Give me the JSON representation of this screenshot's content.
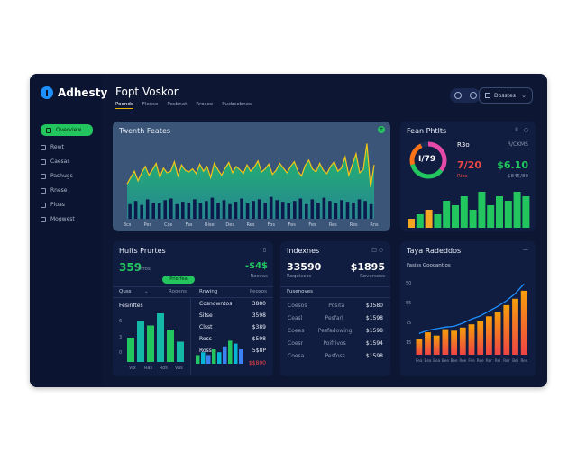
{
  "app": {
    "name": "Adhesty"
  },
  "sidebar": {
    "items": [
      {
        "label": "Overview",
        "active": true
      },
      {
        "label": "Rewt"
      },
      {
        "label": "Caesas"
      },
      {
        "label": "Pashugs"
      },
      {
        "label": "Rnese"
      },
      {
        "label": "Pluas"
      },
      {
        "label": "Mogwest"
      }
    ]
  },
  "header": {
    "title": "Fopt Voskor",
    "tabs": [
      "Poonds",
      "Fleose",
      "Pesbnat",
      "Rrosee",
      "Pucbsebnos"
    ],
    "select_label": "Dbsstes"
  },
  "main_chart": {
    "title": "Twenth Feates",
    "badge": "+",
    "x_labels": [
      "Bcs",
      "Pes",
      "Cos",
      "Fas",
      "Rise",
      "Des",
      "Res",
      "Fos",
      "Fes",
      "Fes",
      "Res",
      "Res",
      "Rns"
    ]
  },
  "chart_data": [
    {
      "type": "area",
      "title": "Twenth Feates",
      "series": [
        {
          "values": [
            44,
            52,
            60,
            48,
            58,
            66,
            55,
            62,
            70,
            52,
            64,
            58,
            60,
            72,
            54,
            68,
            61,
            59,
            63,
            57,
            69,
            60,
            66,
            52,
            70,
            62,
            55,
            64,
            71,
            58,
            66,
            62,
            57,
            68,
            60,
            65,
            73,
            59,
            63,
            69,
            56,
            61,
            70,
            64,
            58,
            66,
            72,
            60,
            54,
            67,
            74,
            63,
            59,
            70,
            61,
            57,
            66,
            72,
            60,
            64,
            78,
            55,
            68,
            82,
            58,
            62,
            95,
            40,
            68
          ]
        }
      ],
      "bars": [
        18,
        22,
        17,
        24,
        20,
        19,
        23,
        25,
        18,
        21,
        20,
        24,
        19,
        22,
        26,
        20,
        23,
        18,
        21,
        25,
        19,
        22,
        24,
        20,
        27,
        23,
        21,
        19,
        22,
        25,
        18,
        24,
        20,
        26,
        22,
        19,
        23,
        21,
        20,
        24,
        22,
        18
      ],
      "ylim": [
        0,
        100
      ],
      "x_tick_labels": [
        "Bcs",
        "Pes",
        "Cos",
        "Fas",
        "Rise",
        "Des",
        "Res",
        "Fos",
        "Fes",
        "Fes",
        "Res",
        "Res",
        "Rns"
      ]
    },
    {
      "type": "bar",
      "title": "Hults Prurtes",
      "values": [
        6,
        10,
        9,
        12,
        8,
        5
      ],
      "bottom_labels": [
        "Vix",
        "Ras",
        "Ros",
        "Vas"
      ]
    },
    {
      "type": "bar",
      "title": "Hults Prurtes",
      "values": [
        3,
        4,
        3,
        5,
        4,
        6,
        8,
        7,
        5
      ],
      "colors": [
        "#22c55e",
        "#06b6d4",
        "#3b82f6",
        "#22c55e",
        "#06b6d4",
        "#3b82f6",
        "#22c55e",
        "#06b6d4",
        "#3b82f6"
      ]
    },
    {
      "type": "bar",
      "title": "Taya Radeddos",
      "subtitle": "Fasiss Goocantios",
      "values": [
        20,
        28,
        24,
        32,
        30,
        34,
        38,
        42,
        48,
        54,
        62,
        70,
        80
      ],
      "line": [
        22,
        26,
        28,
        30,
        31,
        35,
        40,
        44,
        50,
        56,
        63,
        72,
        84
      ],
      "y_ticks": [
        "50",
        "55",
        "75",
        "15"
      ],
      "x_labels": [
        "Fea",
        "Bea",
        "Bea",
        "Bee",
        "Bee",
        "Ree",
        "Fee",
        "Ree",
        "Rer",
        "Rei",
        "Rer",
        "Bei",
        "Res"
      ]
    },
    {
      "type": "bar",
      "title": "Fean Phtlts",
      "values": [
        2,
        3,
        4,
        3,
        6,
        5,
        7,
        4,
        8,
        5,
        7,
        6,
        8,
        7
      ]
    }
  ],
  "donut_panel": {
    "title": "Fean Phtlts",
    "center": "I/79",
    "label1": "R3o",
    "value1": "7/20",
    "sub1": "Riko",
    "label2": "R/CKMS",
    "value2": "$6.10",
    "sub2": "$845/80",
    "icons": [
      "II",
      "○"
    ]
  },
  "panel_bl": {
    "title": "Hults Prurtes",
    "val1": "359",
    "val1_sub": "Prrosi",
    "val2": "-$4$",
    "val2_sub": "Recvas",
    "pill": "Priorfea",
    "col1": "Quss",
    "col2": "Rooens",
    "col3": "Rnwing",
    "col4": "Peoxos",
    "left_title": "Fesinftes",
    "left_axis": [
      "6",
      "3",
      "0"
    ],
    "right_rows": [
      {
        "label": "Cosnowntos",
        "value": "3880"
      },
      {
        "label": "Sitse",
        "value": "3598"
      },
      {
        "label": "Clsst",
        "value": "$389"
      },
      {
        "label": "Ross",
        "value": "$598"
      },
      {
        "label": "Ross",
        "value": "5$8P"
      },
      {
        "label": "",
        "value": "$$800"
      }
    ]
  },
  "panel_bm": {
    "title": "Indexnes",
    "val1": "33590",
    "val1_sub": "Reqeisces",
    "val2": "$1895",
    "val2_sub": "Reversess",
    "header_label": "Fusenoves",
    "rows": [
      {
        "a": "Coesos",
        "b": "Posita",
        "c": "$3580"
      },
      {
        "a": "Ceasl",
        "b": "Pesfarl",
        "c": "$1598"
      },
      {
        "a": "Coees",
        "b": "Pesfadowing",
        "c": "$1598"
      },
      {
        "a": "Coesr",
        "b": "Poifrivos",
        "c": "$1594"
      },
      {
        "a": "Coesa",
        "b": "Pesfoss",
        "c": "$1598"
      }
    ]
  },
  "colors": {
    "bg": "#0d1733",
    "panel": "#111d40",
    "accent_green": "#22c55e",
    "accent_yellow": "#e8b400",
    "accent_red": "#ef4444",
    "accent_orange": "#f97316",
    "navy_bars": "#0b1a4a"
  }
}
